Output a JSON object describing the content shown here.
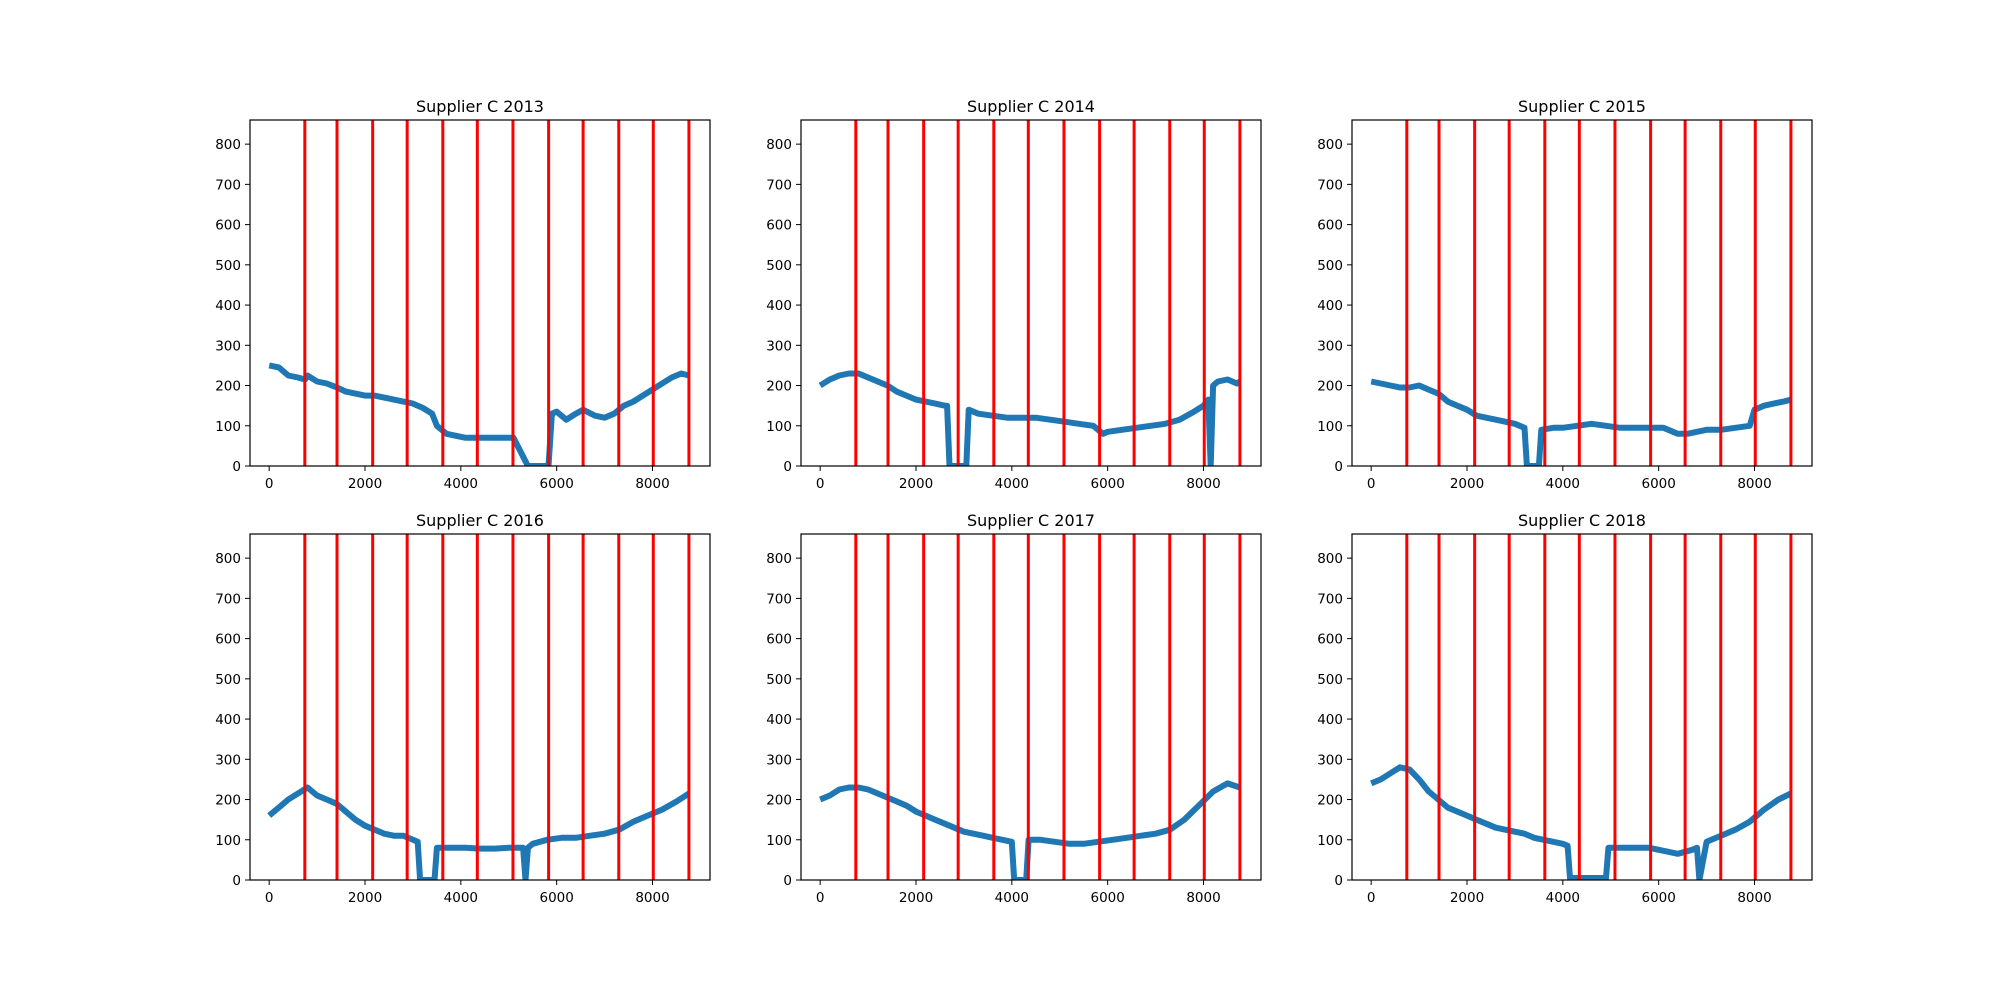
{
  "figure": {
    "background": "#ffffff"
  },
  "style": {
    "line_color": "#1f77b4",
    "vline_color": "#ff0000",
    "axes_color": "#000000"
  },
  "chart_data": [
    {
      "type": "line",
      "title": "Supplier C 2013",
      "xlim": [
        -400,
        9200
      ],
      "ylim": [
        0,
        860
      ],
      "xticks": [
        0,
        2000,
        4000,
        6000,
        8000
      ],
      "yticks": [
        0,
        100,
        200,
        300,
        400,
        500,
        600,
        700,
        800
      ],
      "vlines": [
        744,
        1416,
        2160,
        2880,
        3624,
        4344,
        5088,
        5832,
        6552,
        7296,
        8016,
        8760
      ],
      "series": [
        {
          "x": [
            0,
            200,
            400,
            600,
            750,
            800,
            1000,
            1200,
            1416,
            1600,
            1800,
            2000,
            2200,
            2400,
            2600,
            2800,
            3000,
            3200,
            3400,
            3500,
            3700,
            3900,
            4100,
            4300,
            4500,
            4700,
            4900,
            5100,
            5400,
            5800,
            5830,
            5900,
            6000,
            6100,
            6200,
            6400,
            6550,
            6800,
            7000,
            7200,
            7400,
            7600,
            7800,
            8000,
            8200,
            8400,
            8600,
            8760
          ],
          "y": [
            250,
            245,
            225,
            220,
            215,
            225,
            210,
            205,
            195,
            185,
            180,
            175,
            175,
            170,
            165,
            160,
            155,
            145,
            130,
            100,
            80,
            75,
            70,
            70,
            70,
            70,
            70,
            70,
            0,
            0,
            0,
            130,
            135,
            125,
            115,
            130,
            140,
            125,
            120,
            130,
            150,
            160,
            175,
            190,
            205,
            220,
            230,
            225
          ]
        }
      ]
    },
    {
      "type": "line",
      "title": "Supplier C 2014",
      "xlim": [
        -400,
        9200
      ],
      "ylim": [
        0,
        860
      ],
      "xticks": [
        0,
        2000,
        4000,
        6000,
        8000
      ],
      "yticks": [
        0,
        100,
        200,
        300,
        400,
        500,
        600,
        700,
        800
      ],
      "vlines": [
        744,
        1416,
        2160,
        2880,
        3624,
        4344,
        5088,
        5832,
        6552,
        7296,
        8016,
        8760
      ],
      "series": [
        {
          "x": [
            0,
            200,
            400,
            600,
            800,
            1000,
            1200,
            1400,
            1600,
            1800,
            2000,
            2200,
            2400,
            2600,
            2650,
            2700,
            3050,
            3100,
            3300,
            3600,
            3900,
            4200,
            4500,
            4800,
            5100,
            5400,
            5700,
            5900,
            6000,
            6300,
            6600,
            6900,
            7200,
            7500,
            7800,
            8000,
            8100,
            8150,
            8200,
            8300,
            8500,
            8700,
            8760
          ],
          "y": [
            200,
            215,
            225,
            230,
            230,
            220,
            210,
            200,
            185,
            175,
            165,
            160,
            155,
            150,
            150,
            0,
            0,
            140,
            130,
            125,
            120,
            120,
            120,
            115,
            110,
            105,
            100,
            80,
            85,
            90,
            95,
            100,
            105,
            115,
            135,
            150,
            165,
            0,
            200,
            210,
            215,
            205,
            210
          ]
        }
      ]
    },
    {
      "type": "line",
      "title": "Supplier C 2015",
      "xlim": [
        -400,
        9200
      ],
      "ylim": [
        0,
        860
      ],
      "xticks": [
        0,
        2000,
        4000,
        6000,
        8000
      ],
      "yticks": [
        0,
        100,
        200,
        300,
        400,
        500,
        600,
        700,
        800
      ],
      "vlines": [
        744,
        1416,
        2160,
        2880,
        3624,
        4344,
        5088,
        5832,
        6552,
        7296,
        8016,
        8760
      ],
      "series": [
        {
          "x": [
            0,
            200,
            400,
            600,
            800,
            1000,
            1200,
            1400,
            1600,
            1800,
            2000,
            2200,
            2400,
            2600,
            2800,
            3000,
            3200,
            3250,
            3500,
            3550,
            3800,
            4000,
            4300,
            4600,
            4900,
            5200,
            5500,
            5800,
            6100,
            6400,
            6600,
            6800,
            7000,
            7300,
            7600,
            7900,
            8000,
            8200,
            8400,
            8600,
            8760
          ],
          "y": [
            210,
            205,
            200,
            195,
            195,
            200,
            190,
            180,
            160,
            150,
            140,
            125,
            120,
            115,
            110,
            105,
            95,
            0,
            0,
            90,
            95,
            95,
            100,
            105,
            100,
            95,
            95,
            95,
            95,
            80,
            80,
            85,
            90,
            90,
            95,
            100,
            140,
            150,
            155,
            160,
            165
          ]
        }
      ]
    },
    {
      "type": "line",
      "title": "Supplier C 2016",
      "xlim": [
        -400,
        9200
      ],
      "ylim": [
        0,
        860
      ],
      "xticks": [
        0,
        2000,
        4000,
        6000,
        8000
      ],
      "yticks": [
        0,
        100,
        200,
        300,
        400,
        500,
        600,
        700,
        800
      ],
      "vlines": [
        744,
        1416,
        2160,
        2880,
        3624,
        4344,
        5088,
        5832,
        6552,
        7296,
        8016,
        8760
      ],
      "series": [
        {
          "x": [
            0,
            200,
            400,
            600,
            800,
            1000,
            1200,
            1400,
            1600,
            1800,
            2000,
            2200,
            2400,
            2600,
            2800,
            3000,
            3100,
            3150,
            3450,
            3500,
            3800,
            4100,
            4400,
            4700,
            5000,
            5300,
            5350,
            5400,
            5500,
            5800,
            6100,
            6400,
            6700,
            7000,
            7300,
            7600,
            7900,
            8200,
            8500,
            8760
          ],
          "y": [
            160,
            180,
            200,
            215,
            230,
            210,
            200,
            190,
            170,
            150,
            135,
            125,
            115,
            110,
            110,
            100,
            95,
            0,
            0,
            80,
            80,
            80,
            78,
            78,
            80,
            80,
            0,
            80,
            90,
            100,
            105,
            105,
            110,
            115,
            125,
            145,
            160,
            175,
            195,
            215
          ]
        }
      ]
    },
    {
      "type": "line",
      "title": "Supplier C 2017",
      "xlim": [
        -400,
        9200
      ],
      "ylim": [
        0,
        860
      ],
      "xticks": [
        0,
        2000,
        4000,
        6000,
        8000
      ],
      "yticks": [
        0,
        100,
        200,
        300,
        400,
        500,
        600,
        700,
        800
      ],
      "vlines": [
        744,
        1416,
        2160,
        2880,
        3624,
        4344,
        5088,
        5832,
        6552,
        7296,
        8016,
        8760
      ],
      "series": [
        {
          "x": [
            0,
            200,
            400,
            600,
            800,
            1000,
            1200,
            1400,
            1600,
            1800,
            2000,
            2200,
            2400,
            2600,
            2800,
            3000,
            3200,
            3400,
            3600,
            3800,
            4000,
            4050,
            4300,
            4350,
            4600,
            4900,
            5200,
            5500,
            5800,
            6100,
            6400,
            6700,
            7000,
            7300,
            7600,
            7900,
            8200,
            8500,
            8760
          ],
          "y": [
            200,
            210,
            225,
            230,
            230,
            225,
            215,
            205,
            195,
            185,
            170,
            160,
            150,
            140,
            130,
            120,
            115,
            110,
            105,
            100,
            95,
            0,
            0,
            100,
            100,
            95,
            90,
            90,
            95,
            100,
            105,
            110,
            115,
            125,
            150,
            185,
            220,
            240,
            230
          ]
        }
      ]
    },
    {
      "type": "line",
      "title": "Supplier C 2018",
      "xlim": [
        -400,
        9200
      ],
      "ylim": [
        0,
        860
      ],
      "xticks": [
        0,
        2000,
        4000,
        6000,
        8000
      ],
      "yticks": [
        0,
        100,
        200,
        300,
        400,
        500,
        600,
        700,
        800
      ],
      "vlines": [
        744,
        1416,
        2160,
        2880,
        3624,
        4344,
        5088,
        5832,
        6552,
        7296,
        8016,
        8760
      ],
      "series": [
        {
          "x": [
            0,
            200,
            400,
            600,
            800,
            1000,
            1200,
            1400,
            1600,
            1800,
            2000,
            2200,
            2400,
            2600,
            2800,
            3000,
            3200,
            3400,
            3600,
            3800,
            4000,
            4100,
            4150,
            4900,
            4950,
            5200,
            5500,
            5800,
            6000,
            6200,
            6400,
            6700,
            6800,
            6850,
            7000,
            7300,
            7600,
            7900,
            8200,
            8500,
            8760
          ],
          "y": [
            240,
            250,
            265,
            280,
            275,
            250,
            220,
            200,
            180,
            170,
            160,
            150,
            140,
            130,
            125,
            120,
            115,
            105,
            100,
            95,
            90,
            85,
            5,
            5,
            80,
            80,
            80,
            80,
            75,
            70,
            65,
            75,
            80,
            0,
            95,
            110,
            125,
            145,
            175,
            200,
            215
          ]
        }
      ]
    }
  ]
}
